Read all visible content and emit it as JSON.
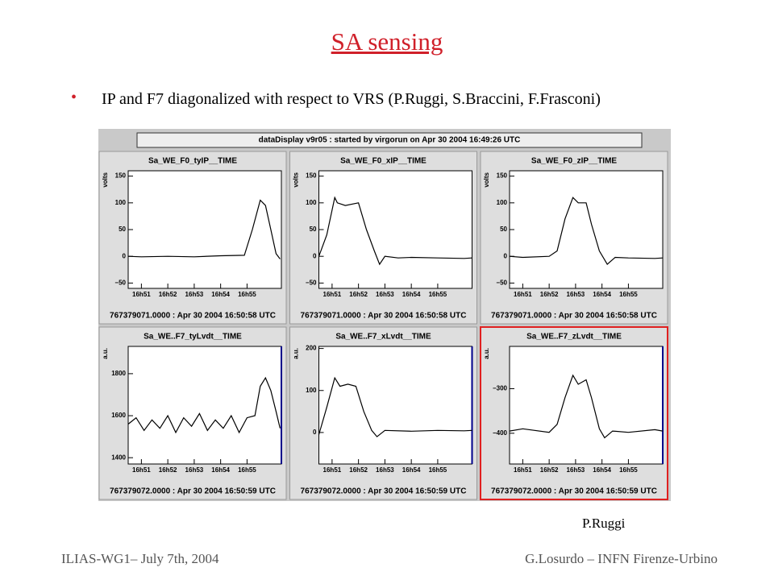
{
  "slide": {
    "title": "SA sensing",
    "bullet": "IP and F7 diagonalized with respect to VRS (P.Ruggi, S.Braccini, F.Frasconi)",
    "credit": "P.Ruggi",
    "footer_left": "ILIAS-WG1– July 7th, 2004",
    "footer_right": "G.Losurdo – INFN Firenze-Urbino"
  },
  "screenshot": {
    "header": "dataDisplay v9r05 : started by virgorun on Apr 30 2004 16:49:26 UTC",
    "panels": [
      {
        "title": "Sa_WE_F0_tyIP__TIME",
        "ylabel": "volts",
        "ylim": [
          -60,
          160
        ],
        "yticks": [
          {
            "value": -50,
            "label": "−50"
          },
          0,
          50,
          100,
          150
        ],
        "xlim": [
          -0.5,
          5.3
        ],
        "xticks": [
          {
            "value": 0,
            "label": "16h51"
          },
          {
            "value": 1,
            "label": "16h52"
          },
          {
            "value": 2,
            "label": "16h53"
          },
          {
            "value": 3,
            "label": "16h54"
          },
          {
            "value": 4,
            "label": "16h55"
          }
        ],
        "footer": "767379071.0000 : Apr 30 2004 16:50:58 UTC",
        "trace": {
          "x": [
            -0.5,
            0,
            1,
            2,
            3,
            3.9,
            4.2,
            4.5,
            4.6,
            4.7,
            4.9,
            5.1,
            5.25
          ],
          "y": [
            0,
            -1,
            0,
            -1,
            1,
            2,
            50,
            105,
            100,
            95,
            50,
            5,
            -5
          ]
        }
      },
      {
        "title": "Sa_WE_F0_xIP__TIME",
        "ylabel": "volts",
        "ylim": [
          -60,
          160
        ],
        "yticks": [
          {
            "value": -50,
            "label": "−50"
          },
          0,
          50,
          100,
          150
        ],
        "xlim": [
          -0.5,
          5.3
        ],
        "xticks": [
          {
            "value": 0,
            "label": "16h51"
          },
          {
            "value": 1,
            "label": "16h52"
          },
          {
            "value": 2,
            "label": "16h53"
          },
          {
            "value": 3,
            "label": "16h54"
          },
          {
            "value": 4,
            "label": "16h55"
          }
        ],
        "footer": "767379071.0000 : Apr 30 2004 16:50:58 UTC",
        "trace": {
          "x": [
            -0.5,
            -0.2,
            0.1,
            0.2,
            0.5,
            1.0,
            1.3,
            1.6,
            1.8,
            2.0,
            2.5,
            3,
            4,
            5,
            5.3
          ],
          "y": [
            0,
            40,
            110,
            100,
            95,
            100,
            50,
            10,
            -15,
            0,
            -3,
            -2,
            -3,
            -4,
            -3
          ]
        }
      },
      {
        "title": "Sa_WE_F0_zIP__TIME",
        "ylabel": "volts",
        "ylim": [
          -60,
          160
        ],
        "yticks": [
          {
            "value": -50,
            "label": "−50"
          },
          0,
          50,
          100,
          150
        ],
        "xlim": [
          -0.5,
          5.3
        ],
        "xticks": [
          {
            "value": 0,
            "label": "16h51"
          },
          {
            "value": 1,
            "label": "16h52"
          },
          {
            "value": 2,
            "label": "16h53"
          },
          {
            "value": 3,
            "label": "16h54"
          },
          {
            "value": 4,
            "label": "16h55"
          }
        ],
        "footer": "767379071.0000 : Apr 30 2004 16:50:58 UTC",
        "trace": {
          "x": [
            -0.5,
            0,
            1,
            1.3,
            1.6,
            1.9,
            2.1,
            2.4,
            2.6,
            2.9,
            3.2,
            3.5,
            4,
            5,
            5.3
          ],
          "y": [
            0,
            -2,
            0,
            10,
            70,
            110,
            100,
            100,
            60,
            10,
            -15,
            -2,
            -3,
            -4,
            -3
          ]
        }
      },
      {
        "title": "Sa_WE..F7_tyLvdt__TIME",
        "ylabel": "a.u.",
        "ylim": [
          1370,
          1930
        ],
        "yticks": [
          1400,
          1600,
          1800
        ],
        "xlim": [
          -0.5,
          5.3
        ],
        "xticks": [
          {
            "value": 0,
            "label": "16h51"
          },
          {
            "value": 1,
            "label": "16h52"
          },
          {
            "value": 2,
            "label": "16h53"
          },
          {
            "value": 3,
            "label": "16h54"
          },
          {
            "value": 4,
            "label": "16h55"
          }
        ],
        "footer": "767379072.0000 : Apr 30 2004 16:50:59 UTC",
        "trace": {
          "x": [
            -0.5,
            -0.2,
            0.1,
            0.4,
            0.7,
            1.0,
            1.3,
            1.6,
            1.9,
            2.2,
            2.5,
            2.8,
            3.1,
            3.4,
            3.7,
            4.0,
            4.3,
            4.5,
            4.7,
            4.9,
            5.1,
            5.25
          ],
          "y": [
            1560,
            1590,
            1530,
            1580,
            1540,
            1600,
            1520,
            1590,
            1550,
            1610,
            1530,
            1580,
            1540,
            1600,
            1520,
            1590,
            1600,
            1740,
            1780,
            1720,
            1620,
            1540
          ]
        }
      },
      {
        "title": "Sa_WE..F7_xLvdt__TIME",
        "ylabel": "a.u.",
        "ylim": [
          -75,
          205
        ],
        "yticks": [
          0,
          100,
          200
        ],
        "xlim": [
          -0.5,
          5.3
        ],
        "xticks": [
          {
            "value": 0,
            "label": "16h51"
          },
          {
            "value": 1,
            "label": "16h52"
          },
          {
            "value": 2,
            "label": "16h53"
          },
          {
            "value": 3,
            "label": "16h54"
          },
          {
            "value": 4,
            "label": "16h55"
          }
        ],
        "footer": "767379072.0000 : Apr 30 2004 16:50:59 UTC",
        "trace": {
          "x": [
            -0.5,
            -0.2,
            0.1,
            0.3,
            0.6,
            0.9,
            1.2,
            1.5,
            1.7,
            2.0,
            3,
            4,
            5,
            5.3
          ],
          "y": [
            -5,
            60,
            130,
            110,
            115,
            110,
            50,
            5,
            -10,
            5,
            3,
            5,
            4,
            5
          ]
        }
      },
      {
        "title": "Sa_WE..F7_zLvdt__TIME",
        "ylabel": "a.u.",
        "ylim": [
          -469,
          -205
        ],
        "yticks": [
          {
            "value": -400,
            "label": "−400"
          },
          {
            "value": -300,
            "label": "−300"
          }
        ],
        "xlim": [
          -0.5,
          5.3
        ],
        "xticks": [
          {
            "value": 0,
            "label": "16h51"
          },
          {
            "value": 1,
            "label": "16h52"
          },
          {
            "value": 2,
            "label": "16h53"
          },
          {
            "value": 3,
            "label": "16h54"
          },
          {
            "value": 4,
            "label": "16h55"
          }
        ],
        "footer": "767379072.0000 : Apr 30 2004 16:50:59 UTC",
        "highlighted": true,
        "trace": {
          "x": [
            -0.5,
            0,
            1,
            1.3,
            1.6,
            1.9,
            2.1,
            2.4,
            2.6,
            2.9,
            3.1,
            3.4,
            4,
            5,
            5.3
          ],
          "y": [
            -395,
            -390,
            -398,
            -380,
            -320,
            -270,
            -290,
            -280,
            -320,
            -390,
            -410,
            -395,
            -398,
            -392,
            -395
          ]
        }
      }
    ]
  }
}
